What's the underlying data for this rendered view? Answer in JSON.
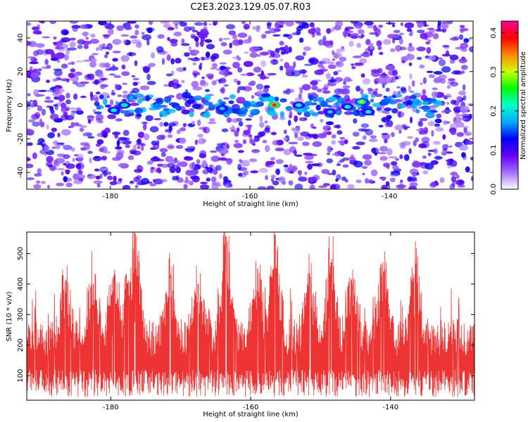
{
  "title": "C2E3.2023.129.05.07.R03",
  "chart_data": [
    {
      "type": "heatmap",
      "xlabel": "Height of straight line (km)",
      "ylabel": "Frequency (Hz)",
      "xlim": [
        -192,
        -128
      ],
      "ylim": [
        -50,
        50
      ],
      "xticks": [
        -180,
        -160,
        -140
      ],
      "yticks": [
        -40,
        -20,
        0,
        20,
        40
      ],
      "colorbar": {
        "label": "Normalized spectral amplitude",
        "range": [
          0.0,
          0.43
        ],
        "ticks": [
          0.0,
          0.1,
          0.2,
          0.3,
          0.4
        ],
        "colormap": [
          "#ffffff",
          "#a070ff",
          "#6600ff",
          "#0000ff",
          "#00aaff",
          "#00ffcc",
          "#00ff00",
          "#ccff00",
          "#ff8800",
          "#ff0000",
          "#ff0099"
        ]
      },
      "ridge_frequency_hz": 0,
      "peaks": [
        {
          "x": -179.5,
          "y": -3,
          "value": 0.22
        },
        {
          "x": -178.0,
          "y": 0,
          "value": 0.24
        },
        {
          "x": -164.0,
          "y": -2,
          "value": 0.2
        },
        {
          "x": -156.5,
          "y": 0,
          "value": 0.42
        },
        {
          "x": -153.0,
          "y": 0,
          "value": 0.22
        },
        {
          "x": -148.5,
          "y": -4,
          "value": 0.2
        },
        {
          "x": -146.0,
          "y": -1,
          "value": 0.22
        },
        {
          "x": -144.0,
          "y": 2,
          "value": 0.3
        },
        {
          "x": -143.0,
          "y": -4,
          "value": 0.22
        }
      ]
    },
    {
      "type": "line",
      "xlabel": "Height of straight line (km)",
      "ylabel": "SNR (10 * v/v)",
      "xlim": [
        -192,
        -128
      ],
      "ylim": [
        20,
        570
      ],
      "xticks": [
        -180,
        -160,
        -140
      ],
      "yticks": [
        100,
        200,
        300,
        400,
        500
      ],
      "color": "#ee3333",
      "baseline_snr": 140,
      "spikes": [
        {
          "x": -186.5,
          "y": 410
        },
        {
          "x": -182.5,
          "y": 400
        },
        {
          "x": -179.5,
          "y": 430
        },
        {
          "x": -177.5,
          "y": 410
        },
        {
          "x": -176.5,
          "y": 565
        },
        {
          "x": -171.5,
          "y": 420
        },
        {
          "x": -167.5,
          "y": 400
        },
        {
          "x": -163.5,
          "y": 555
        },
        {
          "x": -159.0,
          "y": 450
        },
        {
          "x": -156.5,
          "y": 560
        },
        {
          "x": -151.5,
          "y": 420
        },
        {
          "x": -148.5,
          "y": 470
        },
        {
          "x": -145.5,
          "y": 400
        },
        {
          "x": -141.0,
          "y": 440
        },
        {
          "x": -136.5,
          "y": 430
        }
      ]
    }
  ]
}
